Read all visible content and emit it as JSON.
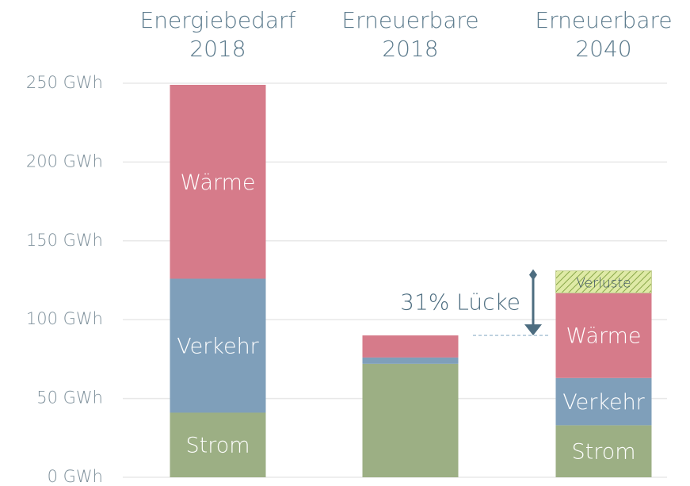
{
  "chart_data": {
    "type": "stacked-bar",
    "categories": [
      "Energiebedarf\n2018",
      "Erneuerbare\n2018",
      "Erneuerbare\n2040"
    ],
    "series": [
      {
        "name": "Strom",
        "color": "#9caf84",
        "text_color": "#ffffff",
        "values": [
          41,
          72,
          33
        ]
      },
      {
        "name": "Verkehr",
        "color": "#7f9fba",
        "text_color": "#ffffff",
        "values": [
          85,
          4,
          30
        ]
      },
      {
        "name": "Wärme",
        "color": "#d67b8a",
        "text_color": "#ffffff",
        "values": [
          123,
          14,
          54
        ]
      },
      {
        "name": "Verluste",
        "color": "#dfeaa6",
        "pattern": "hatch",
        "text_color": "#3e5566",
        "values": [
          null,
          null,
          14
        ]
      }
    ],
    "segment_labels": [
      true,
      false,
      true
    ],
    "annotation": "31% Lücke",
    "ylim": [
      0,
      250
    ],
    "yticks": [
      {
        "value": 0,
        "label": "0 GWh"
      },
      {
        "value": 50,
        "label": "50 GWh"
      },
      {
        "value": 100,
        "label": "100 GWh"
      },
      {
        "value": 150,
        "label": "150 GWh"
      },
      {
        "value": 200,
        "label": "200 GWh"
      },
      {
        "value": 250,
        "label": "250 GWh"
      }
    ],
    "grid": true
  }
}
